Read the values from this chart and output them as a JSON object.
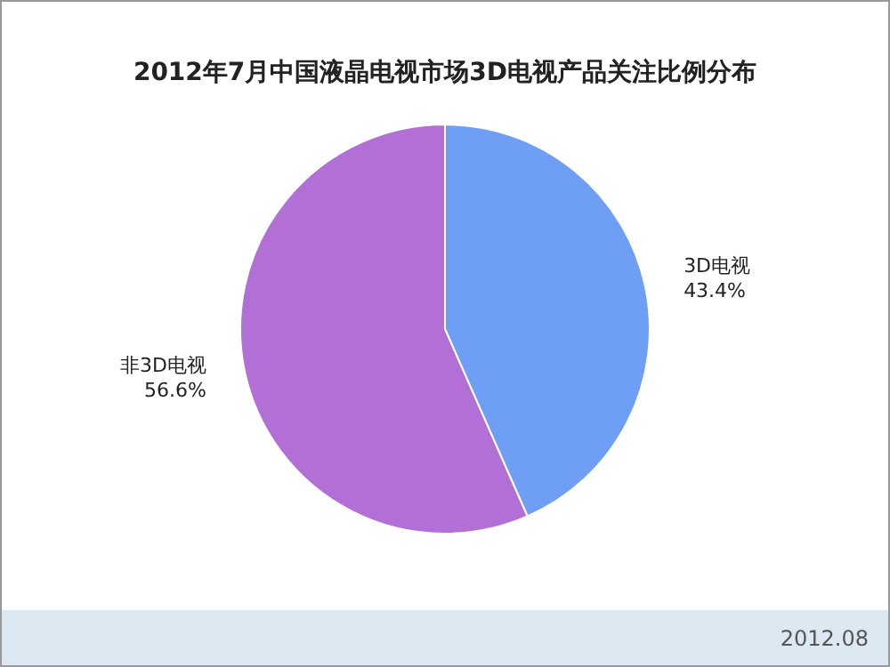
{
  "chart_data": {
    "type": "pie",
    "title": "2012年7月中国液晶电视市场3D电视产品关注比例分布",
    "categories": [
      "3D电视",
      "非3D电视"
    ],
    "values": [
      43.4,
      56.6
    ],
    "colors": [
      "#6f9ff5",
      "#b26fd6"
    ],
    "value_labels": [
      "43.4%",
      "56.6%"
    ],
    "annotations": [
      "2012.08"
    ]
  }
}
